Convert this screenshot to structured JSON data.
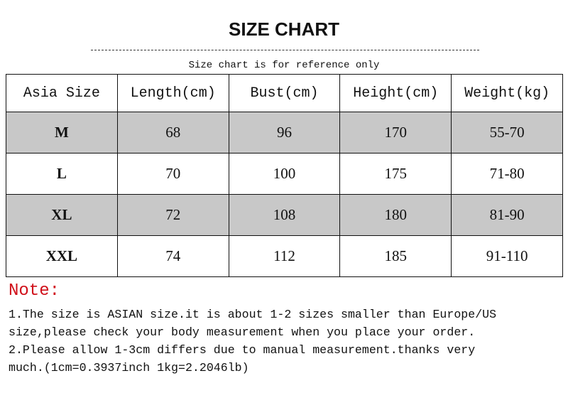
{
  "title": "SIZE CHART",
  "subtitle": "Size chart is for reference only",
  "table": {
    "headers": [
      "Asia Size",
      "Length(cm)",
      "Bust(cm)",
      "Height(cm)",
      "Weight(kg)"
    ],
    "rows": [
      [
        "M",
        "68",
        "96",
        "170",
        "55-70"
      ],
      [
        "L",
        "70",
        "100",
        "175",
        "71-80"
      ],
      [
        "XL",
        "72",
        "108",
        "180",
        "81-90"
      ],
      [
        "XXL",
        "74",
        "112",
        "185",
        "91-110"
      ]
    ],
    "shaded_row_color": "#c8c8c8"
  },
  "note": {
    "heading": "Note:",
    "heading_color": "#d0101a",
    "lines": [
      "1.The size is ASIAN size.it is about 1-2 sizes smaller than Europe/US",
      "size,please check your body measurement when you place your order.",
      "2.Please allow 1-3cm differs due to manual measurement.thanks very",
      "much.(1cm=0.3937inch 1kg=2.2046lb)"
    ]
  }
}
